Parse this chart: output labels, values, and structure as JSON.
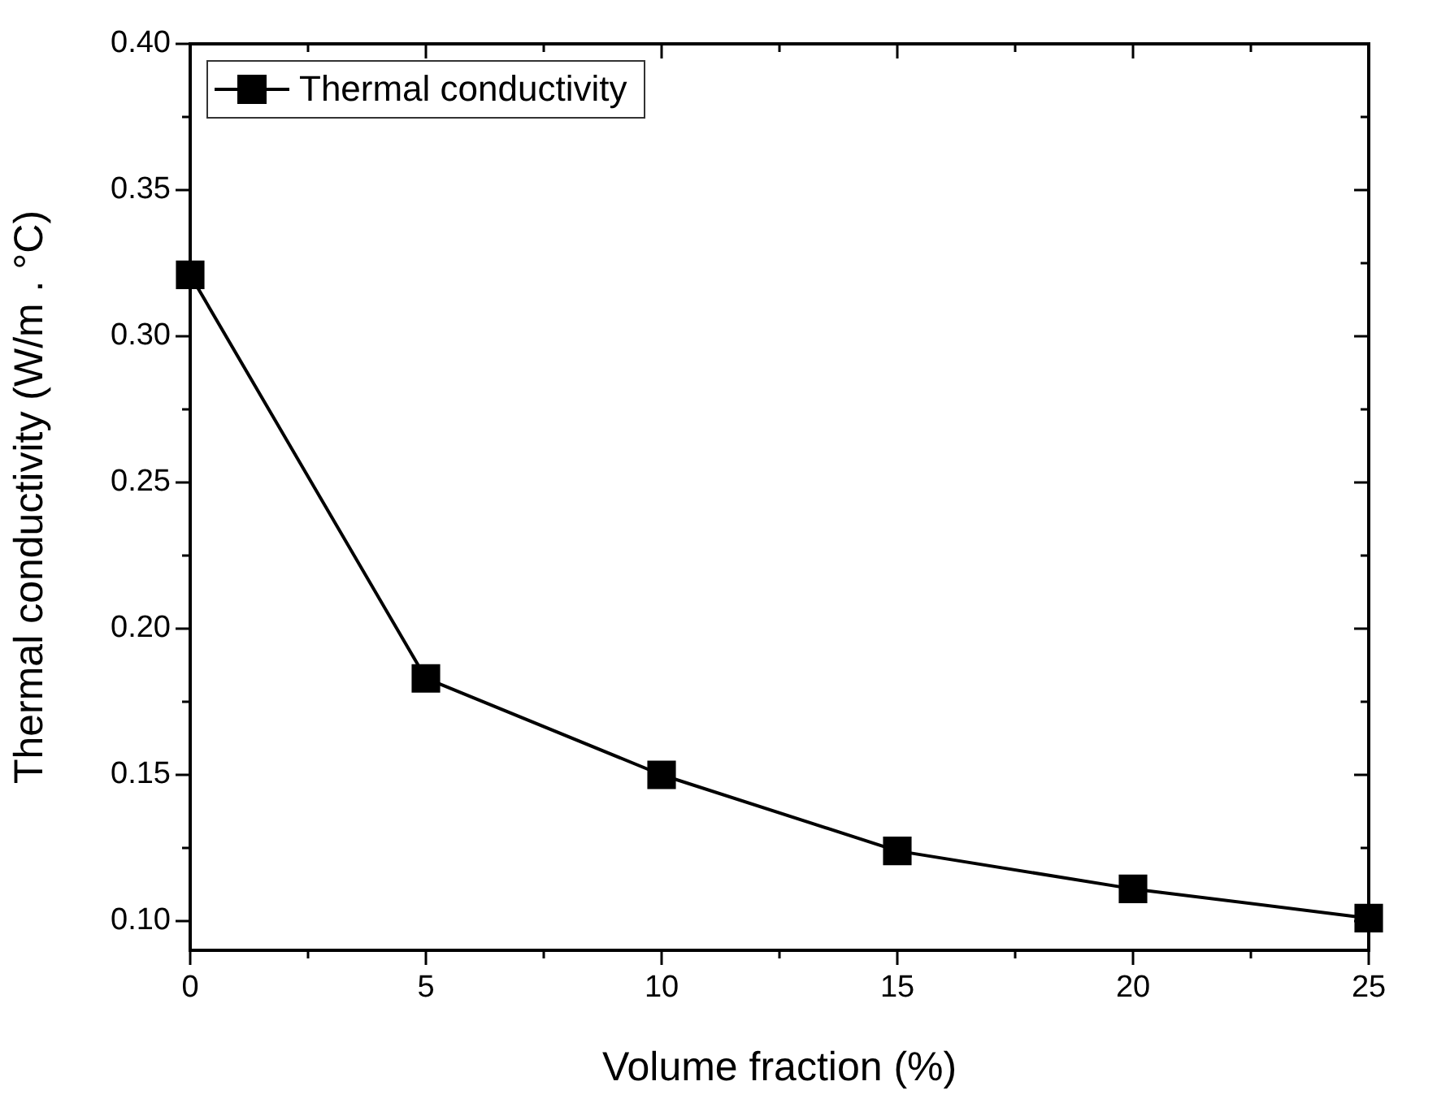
{
  "chart_data": {
    "type": "line",
    "xlabel": "Volume fraction (%)",
    "ylabel": "Thermal conductivity (W/m . °C)",
    "x": [
      0,
      5,
      10,
      15,
      20,
      25
    ],
    "series": [
      {
        "name": "Thermal conductivity",
        "color": "#000000",
        "values": [
          0.321,
          0.183,
          0.15,
          0.124,
          0.111,
          0.101
        ]
      }
    ],
    "xlim": [
      0,
      25
    ],
    "ylim": [
      0.09,
      0.4
    ],
    "xticks": [
      0,
      {
        "value": 2.5,
        "label": null
      },
      5,
      {
        "value": 7.5,
        "label": null
      },
      10,
      {
        "value": 12.5,
        "label": null
      },
      15,
      {
        "value": 17.5,
        "label": null
      },
      20,
      {
        "value": 22.5,
        "label": null
      },
      25
    ],
    "yticks": [
      {
        "value": 0.1,
        "label": "0.10"
      },
      {
        "value": 0.125,
        "label": null
      },
      {
        "value": 0.15,
        "label": "0.15"
      },
      {
        "value": 0.175,
        "label": null
      },
      {
        "value": 0.2,
        "label": "0.20"
      },
      {
        "value": 0.225,
        "label": null
      },
      {
        "value": 0.25,
        "label": "0.25"
      },
      {
        "value": 0.275,
        "label": null
      },
      {
        "value": 0.3,
        "label": "0.30"
      },
      {
        "value": 0.325,
        "label": null
      },
      {
        "value": 0.35,
        "label": "0.35"
      },
      {
        "value": 0.375,
        "label": null
      },
      {
        "value": 0.4,
        "label": "0.40"
      }
    ],
    "grid": false,
    "legend": "top left",
    "marker": "square",
    "line_style": "solid"
  }
}
